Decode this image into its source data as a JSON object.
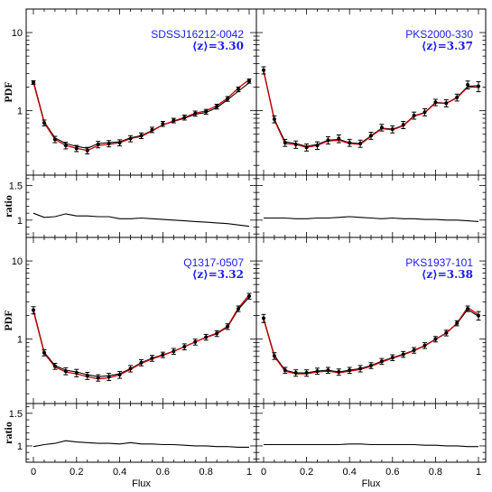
{
  "chart_data": [
    {
      "type": "line",
      "object": "SDSSJ16212-0042",
      "mean_z": "⟨z⟩=3.30",
      "xlabel": "Flux",
      "ylabel": "PDF",
      "xlim": [
        0,
        1
      ],
      "ylim": [
        0.15,
        20
      ],
      "yscale": "log",
      "yticklabels": [
        "1",
        "10"
      ],
      "xticklabels": [
        "0",
        "0.2",
        "0.4",
        "0.6",
        "0.8",
        "1"
      ],
      "x": [
        0.0,
        0.05,
        0.1,
        0.15,
        0.2,
        0.25,
        0.3,
        0.35,
        0.4,
        0.45,
        0.5,
        0.55,
        0.6,
        0.65,
        0.7,
        0.75,
        0.8,
        0.85,
        0.9,
        0.95,
        1.0
      ],
      "series": [
        {
          "name": "",
          "values": [
            2.4,
            0.72,
            0.45,
            0.38,
            0.35,
            0.33,
            0.38,
            0.39,
            0.4,
            0.45,
            0.48,
            0.56,
            0.66,
            0.73,
            0.8,
            0.9,
            0.95,
            1.1,
            1.38,
            1.78,
            2.28
          ],
          "color": "#000000"
        },
        {
          "name": "",
          "values": [
            2.3,
            0.7,
            0.43,
            0.36,
            0.33,
            0.31,
            0.36,
            0.37,
            0.39,
            0.44,
            0.47,
            0.55,
            0.66,
            0.74,
            0.82,
            0.93,
            1.0,
            1.16,
            1.45,
            1.95,
            2.5
          ],
          "color": "#cc0000"
        }
      ],
      "points": [
        2.3,
        0.7,
        0.43,
        0.36,
        0.33,
        0.31,
        0.37,
        0.38,
        0.39,
        0.44,
        0.48,
        0.57,
        0.68,
        0.75,
        0.82,
        0.92,
        0.97,
        1.13,
        1.42,
        1.88,
        2.4
      ],
      "yerr": [
        0.12,
        0.06,
        0.04,
        0.035,
        0.03,
        0.03,
        0.035,
        0.035,
        0.035,
        0.04,
        0.04,
        0.045,
        0.05,
        0.05,
        0.06,
        0.07,
        0.07,
        0.08,
        0.1,
        0.13,
        0.15
      ],
      "ratio": {
        "ylabel": "ratio",
        "ylim": [
          0.75,
          1.65
        ],
        "yticklabels": [
          "1",
          "1.5"
        ],
        "values": [
          1.1,
          1.04,
          1.05,
          1.09,
          1.06,
          1.06,
          1.05,
          1.05,
          1.02,
          1.02,
          1.03,
          1.02,
          1.01,
          1.0,
          0.99,
          0.98,
          0.97,
          0.96,
          0.95,
          0.93,
          0.91
        ]
      }
    },
    {
      "type": "line",
      "object": "PKS2000-330",
      "mean_z": "⟨z⟩=3.37",
      "xlabel": "Flux",
      "ylabel": "",
      "xlim": [
        0,
        1
      ],
      "ylim": [
        0.15,
        20
      ],
      "yscale": "log",
      "yticklabels": [],
      "xticklabels": [
        "0",
        "0.2",
        "0.4",
        "0.6",
        "0.8",
        "1"
      ],
      "x": [
        0.0,
        0.05,
        0.1,
        0.15,
        0.2,
        0.25,
        0.3,
        0.35,
        0.4,
        0.45,
        0.5,
        0.55,
        0.6,
        0.65,
        0.7,
        0.75,
        0.8,
        0.85,
        0.9,
        0.95,
        1.0
      ],
      "series": [
        {
          "name": "",
          "values": [
            3.3,
            0.78,
            0.4,
            0.38,
            0.35,
            0.37,
            0.42,
            0.43,
            0.39,
            0.38,
            0.48,
            0.6,
            0.58,
            0.65,
            0.86,
            0.95,
            1.28,
            1.25,
            1.48,
            2.05,
            2.1
          ],
          "color": "#000000"
        },
        {
          "name": "",
          "values": [
            3.2,
            0.76,
            0.38,
            0.37,
            0.34,
            0.36,
            0.41,
            0.42,
            0.38,
            0.37,
            0.47,
            0.59,
            0.57,
            0.64,
            0.85,
            0.94,
            1.26,
            1.24,
            1.46,
            2.0,
            2.0
          ],
          "color": "#cc0000"
        }
      ],
      "points": [
        3.3,
        0.78,
        0.39,
        0.37,
        0.34,
        0.36,
        0.42,
        0.44,
        0.39,
        0.38,
        0.48,
        0.61,
        0.58,
        0.66,
        0.87,
        0.96,
        1.28,
        1.25,
        1.48,
        2.15,
        2.05
      ],
      "yerr": [
        0.35,
        0.08,
        0.04,
        0.04,
        0.035,
        0.04,
        0.045,
        0.05,
        0.04,
        0.04,
        0.05,
        0.06,
        0.06,
        0.07,
        0.09,
        0.1,
        0.12,
        0.13,
        0.15,
        0.25,
        0.3
      ],
      "ratio": {
        "ylabel": "",
        "ylim": [
          0.75,
          1.65
        ],
        "yticklabels": [],
        "values": [
          1.03,
          1.03,
          1.03,
          1.02,
          1.02,
          1.03,
          1.03,
          1.04,
          1.05,
          1.04,
          1.03,
          1.02,
          1.03,
          1.02,
          1.02,
          1.01,
          1.01,
          1.0,
          1.0,
          0.99,
          0.98
        ]
      }
    },
    {
      "type": "line",
      "object": "Q1317-0507",
      "mean_z": "⟨z⟩=3.32",
      "xlabel": "Flux",
      "ylabel": "PDF",
      "xlim": [
        0,
        1
      ],
      "ylim": [
        0.15,
        20
      ],
      "yscale": "log",
      "yticklabels": [
        "1",
        "10"
      ],
      "xticklabels": [
        "0",
        "0.2",
        "0.4",
        "0.6",
        "0.8",
        "1"
      ],
      "x": [
        0.0,
        0.05,
        0.1,
        0.15,
        0.2,
        0.25,
        0.3,
        0.35,
        0.4,
        0.45,
        0.5,
        0.55,
        0.6,
        0.65,
        0.7,
        0.75,
        0.8,
        0.85,
        0.9,
        0.95,
        1.0
      ],
      "series": [
        {
          "name": "",
          "values": [
            2.4,
            0.68,
            0.46,
            0.4,
            0.38,
            0.35,
            0.33,
            0.34,
            0.36,
            0.42,
            0.5,
            0.57,
            0.63,
            0.7,
            0.8,
            0.92,
            1.05,
            1.17,
            1.43,
            2.4,
            3.45
          ],
          "color": "#000000"
        },
        {
          "name": "",
          "values": [
            2.3,
            0.66,
            0.44,
            0.38,
            0.36,
            0.33,
            0.31,
            0.32,
            0.35,
            0.41,
            0.49,
            0.56,
            0.62,
            0.7,
            0.8,
            0.92,
            1.06,
            1.19,
            1.46,
            2.5,
            3.7
          ],
          "color": "#cc0000"
        }
      ],
      "points": [
        2.35,
        0.67,
        0.45,
        0.39,
        0.37,
        0.34,
        0.32,
        0.33,
        0.35,
        0.42,
        0.5,
        0.57,
        0.63,
        0.7,
        0.8,
        0.92,
        1.06,
        1.18,
        1.45,
        2.45,
        3.55
      ],
      "yerr": [
        0.25,
        0.06,
        0.04,
        0.04,
        0.04,
        0.035,
        0.03,
        0.035,
        0.035,
        0.04,
        0.045,
        0.05,
        0.05,
        0.06,
        0.07,
        0.08,
        0.09,
        0.1,
        0.12,
        0.2,
        0.3
      ],
      "ratio": {
        "ylabel": "ratio",
        "ylim": [
          0.75,
          1.65
        ],
        "yticklabels": [
          "1",
          "1.5"
        ],
        "values": [
          0.99,
          1.02,
          1.04,
          1.08,
          1.06,
          1.05,
          1.04,
          1.04,
          1.03,
          1.05,
          1.03,
          1.03,
          1.02,
          1.02,
          1.01,
          1.0,
          1.0,
          0.99,
          0.99,
          0.98,
          0.98
        ]
      }
    },
    {
      "type": "line",
      "object": "PKS1937-101",
      "mean_z": "⟨z⟩=3.38",
      "xlabel": "Flux",
      "ylabel": "",
      "xlim": [
        0,
        1
      ],
      "ylim": [
        0.15,
        20
      ],
      "yscale": "log",
      "yticklabels": [],
      "xticklabels": [
        "0",
        "0.2",
        "0.4",
        "0.6",
        "0.8",
        "1"
      ],
      "x": [
        0.0,
        0.05,
        0.1,
        0.15,
        0.2,
        0.25,
        0.3,
        0.35,
        0.4,
        0.45,
        0.5,
        0.55,
        0.6,
        0.65,
        0.7,
        0.75,
        0.8,
        0.85,
        0.9,
        0.95,
        1.0
      ],
      "series": [
        {
          "name": "",
          "values": [
            1.85,
            0.62,
            0.4,
            0.37,
            0.37,
            0.39,
            0.4,
            0.38,
            0.4,
            0.42,
            0.46,
            0.52,
            0.58,
            0.64,
            0.72,
            0.83,
            1.0,
            1.2,
            1.58,
            2.4,
            1.95
          ],
          "color": "#000000"
        },
        {
          "name": "",
          "values": [
            1.8,
            0.6,
            0.39,
            0.36,
            0.36,
            0.38,
            0.39,
            0.37,
            0.39,
            0.41,
            0.45,
            0.51,
            0.57,
            0.63,
            0.71,
            0.82,
            0.99,
            1.19,
            1.6,
            2.55,
            2.05
          ],
          "color": "#cc0000"
        }
      ],
      "points": [
        1.85,
        0.61,
        0.4,
        0.37,
        0.37,
        0.39,
        0.4,
        0.38,
        0.4,
        0.42,
        0.46,
        0.52,
        0.58,
        0.64,
        0.72,
        0.83,
        1.0,
        1.2,
        1.6,
        2.45,
        2.0
      ],
      "yerr": [
        0.22,
        0.06,
        0.035,
        0.035,
        0.035,
        0.035,
        0.035,
        0.035,
        0.035,
        0.04,
        0.04,
        0.045,
        0.05,
        0.055,
        0.06,
        0.07,
        0.08,
        0.1,
        0.12,
        0.2,
        0.25
      ],
      "ratio": {
        "ylabel": "",
        "ylim": [
          0.75,
          1.65
        ],
        "yticklabels": [],
        "values": [
          1.02,
          1.02,
          1.02,
          1.02,
          1.02,
          1.02,
          1.02,
          1.02,
          1.03,
          1.03,
          1.02,
          1.02,
          1.02,
          1.02,
          1.02,
          1.01,
          1.01,
          1.0,
          1.0,
          0.99,
          0.99
        ]
      }
    }
  ]
}
